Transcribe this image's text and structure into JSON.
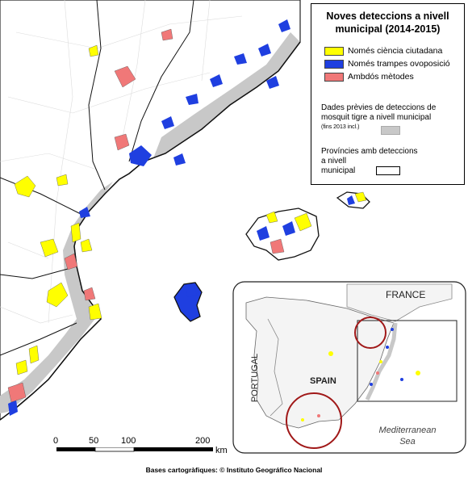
{
  "legend": {
    "title_line1": "Noves deteccions a nivell",
    "title_line2": "municipal (2014-2015)",
    "items": [
      {
        "label": "Només ciència ciutadana",
        "color": "#ffff00"
      },
      {
        "label": "Només trampes ovoposició",
        "color": "#1f3fe0"
      },
      {
        "label": "Ambdós mètodes",
        "color": "#f07878"
      }
    ],
    "previous_line1": "Dades prèvies de deteccions de",
    "previous_line2": "mosquit tigre a nivell municipal",
    "previous_note": "(fins 2013 incl.)",
    "previous_color": "#c8c8c8",
    "provinces_line1": "Províncies amb deteccions",
    "provinces_line2": "a nivell",
    "provinces_line3": "municipal"
  },
  "scale": {
    "ticks": [
      "0",
      "50",
      "100",
      "200"
    ],
    "unit": "km"
  },
  "inset": {
    "france": "FRANCE",
    "portugal": "PORTUGAL",
    "spain": "SPAIN",
    "sea_line1": "Mediterranean",
    "sea_line2": "Sea"
  },
  "attribution": "Bases cartogràfiques: © Instituto Geográfico Nacional",
  "colors": {
    "citizen": "#ffff00",
    "traps": "#1f3fe0",
    "both": "#f07878",
    "previous": "#c8c8c8",
    "circle": "#a01818"
  }
}
